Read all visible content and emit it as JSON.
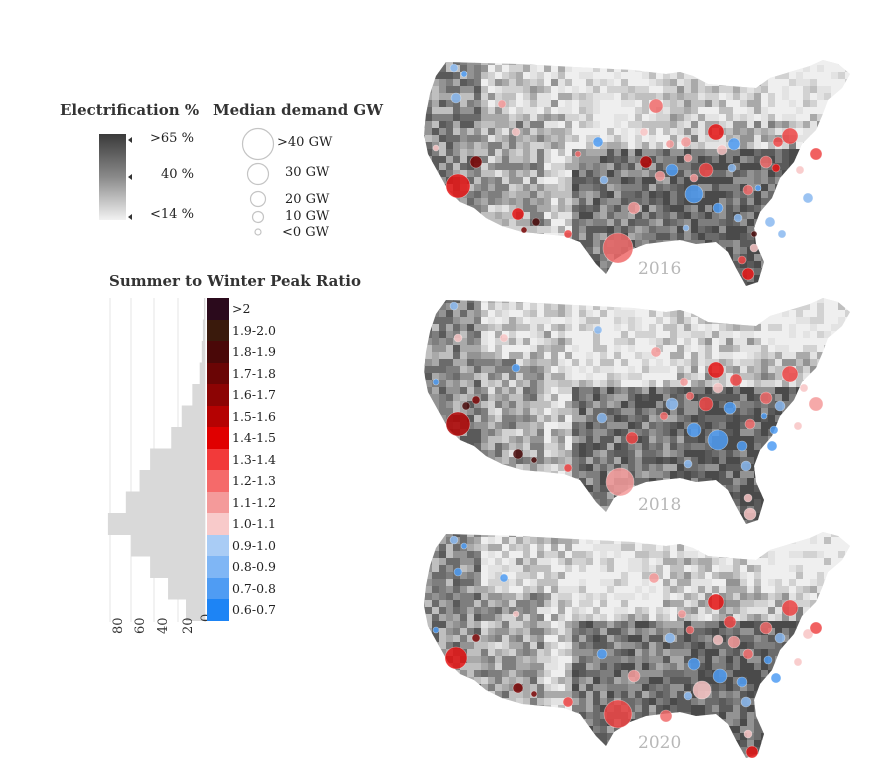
{
  "legend": {
    "electrification": {
      "title": "Electrification %",
      "labels": [
        ">65 %",
        "40 %",
        "<14 %"
      ]
    },
    "median_demand": {
      "title": "Median demand GW",
      "labels": [
        ">40 GW",
        "30 GW",
        "20 GW",
        "10 GW",
        "<0 GW"
      ]
    },
    "peak_ratio": {
      "title": "Summer to Winter Peak Ratio",
      "bins": [
        {
          "label": ">2",
          "color": "#2b0a1c"
        },
        {
          "label": "1.9-2.0",
          "color": "#3a1a0c"
        },
        {
          "label": "1.8-1.9",
          "color": "#4a0808"
        },
        {
          "label": "1.7-1.8",
          "color": "#6a0505"
        },
        {
          "label": "1.6-1.7",
          "color": "#8c0404"
        },
        {
          "label": "1.5-1.6",
          "color": "#b50202"
        },
        {
          "label": "1.4-1.5",
          "color": "#e00000"
        },
        {
          "label": "1.3-1.4",
          "color": "#f23a3a"
        },
        {
          "label": "1.2-1.3",
          "color": "#f56a6a"
        },
        {
          "label": "1.1-1.2",
          "color": "#f49a9a"
        },
        {
          "label": "1.0-1.1",
          "color": "#f8caca"
        },
        {
          "label": "0.9-1.0",
          "color": "#a9ccf5"
        },
        {
          "label": "0.8-0.9",
          "color": "#7fb6f5"
        },
        {
          "label": "0.7-0.8",
          "color": "#4f9cf3"
        },
        {
          "label": "0.6-0.7",
          "color": "#1d84f5"
        }
      ],
      "histogram_axis_ticks": [
        "80",
        "60",
        "40",
        "20",
        "0"
      ],
      "histogram_counts": [
        1,
        2,
        3,
        5,
        12,
        22,
        32,
        52,
        62,
        75,
        92,
        70,
        52,
        35,
        18
      ]
    }
  },
  "maps": [
    {
      "year": "2016"
    },
    {
      "year": "2018"
    },
    {
      "year": "2020"
    }
  ]
}
